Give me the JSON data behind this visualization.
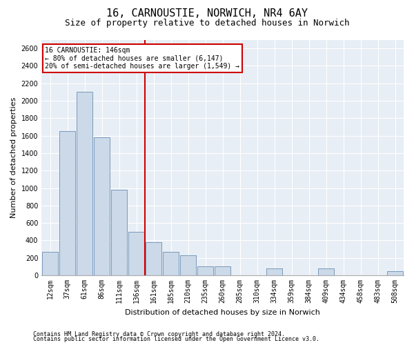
{
  "title1": "16, CARNOUSTIE, NORWICH, NR4 6AY",
  "title2": "Size of property relative to detached houses in Norwich",
  "xlabel": "Distribution of detached houses by size in Norwich",
  "ylabel": "Number of detached properties",
  "categories": [
    "12sqm",
    "37sqm",
    "61sqm",
    "86sqm",
    "111sqm",
    "136sqm",
    "161sqm",
    "185sqm",
    "210sqm",
    "235sqm",
    "260sqm",
    "285sqm",
    "310sqm",
    "334sqm",
    "359sqm",
    "384sqm",
    "409sqm",
    "434sqm",
    "458sqm",
    "483sqm",
    "508sqm"
  ],
  "values": [
    270,
    1650,
    2100,
    1580,
    980,
    500,
    380,
    270,
    230,
    100,
    100,
    0,
    0,
    80,
    0,
    0,
    80,
    0,
    0,
    0,
    50
  ],
  "bar_color": "#ccd9e8",
  "bar_edge_color": "#7799bb",
  "vline_pos": 5.5,
  "vline_color": "#cc0000",
  "annotation_box_text": "16 CARNOUSTIE: 146sqm\n← 80% of detached houses are smaller (6,147)\n20% of semi-detached houses are larger (1,549) →",
  "annotation_box_color": "#cc0000",
  "ylim": [
    0,
    2700
  ],
  "yticks": [
    0,
    200,
    400,
    600,
    800,
    1000,
    1200,
    1400,
    1600,
    1800,
    2000,
    2200,
    2400,
    2600
  ],
  "footer1": "Contains HM Land Registry data © Crown copyright and database right 2024.",
  "footer2": "Contains public sector information licensed under the Open Government Licence v3.0.",
  "plot_bg_color": "#e8eef5",
  "title1_fontsize": 11,
  "title2_fontsize": 9,
  "annotation_fontsize": 7,
  "axis_fontsize": 7,
  "xlabel_fontsize": 8,
  "ylabel_fontsize": 8
}
